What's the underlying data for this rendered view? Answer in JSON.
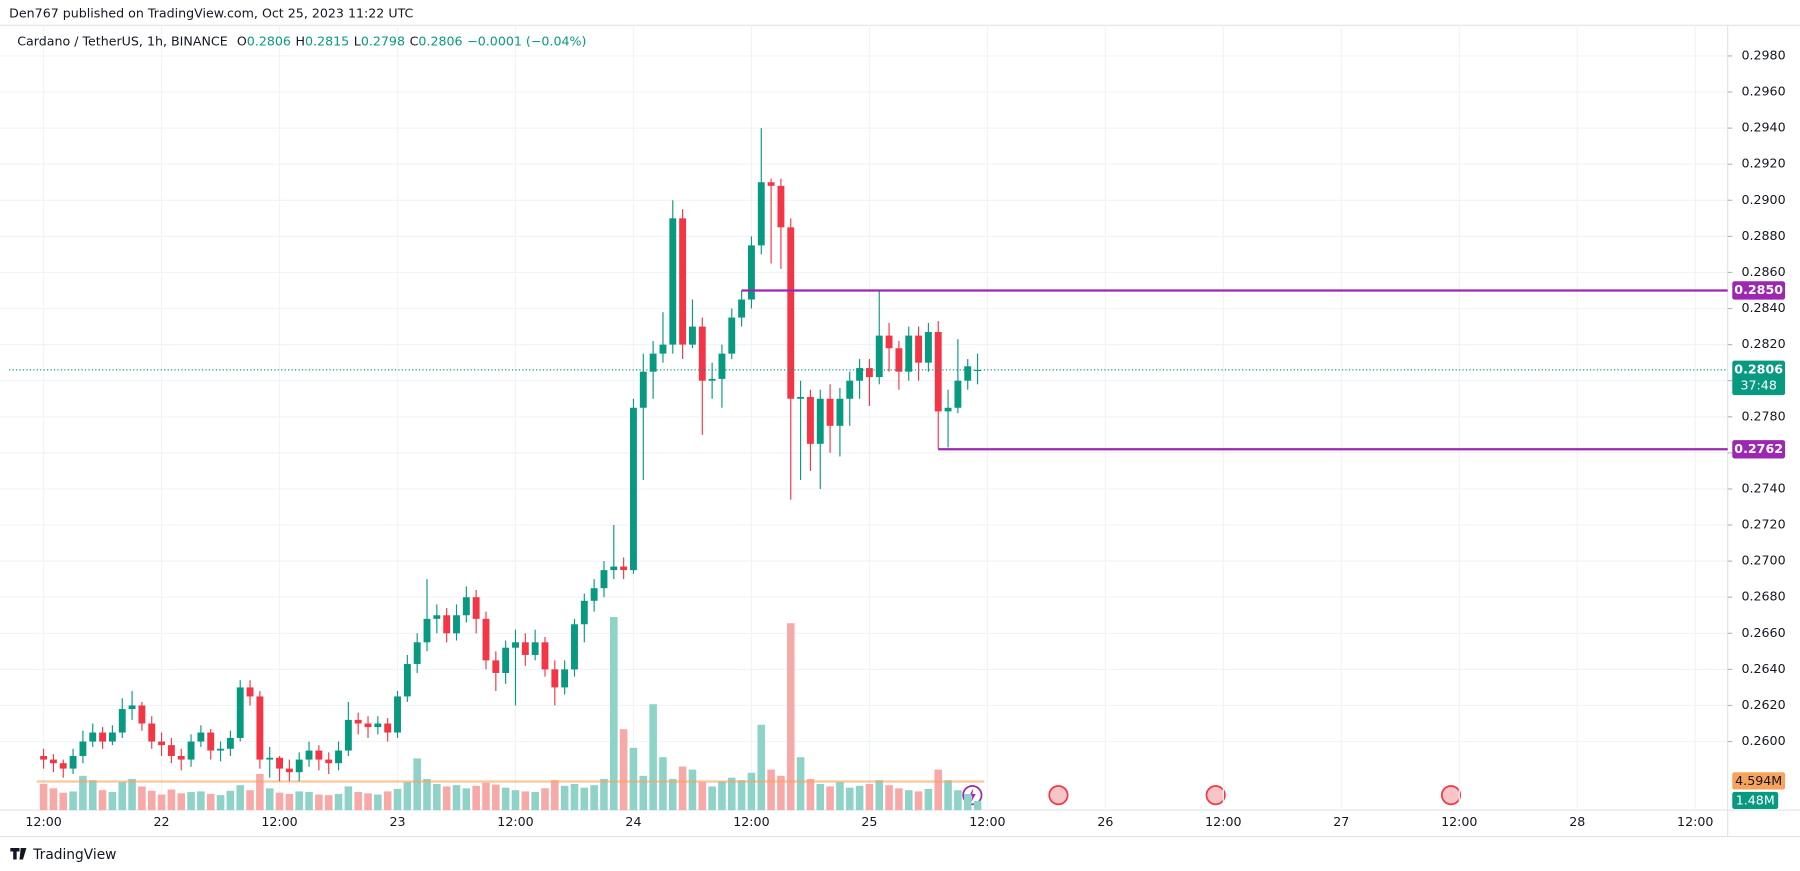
{
  "header": {
    "publisher": "Den767 published on TradingView.com, Oct 25, 2023 11:22 UTC",
    "footer": "TradingView"
  },
  "chart_data": {
    "type": "candlestick",
    "title": "Cardano / TetherUS, 1h, BINANCE",
    "legend_ohlc": [
      {
        "key": "O",
        "value": "0.2806"
      },
      {
        "key": "H",
        "value": "0.2815"
      },
      {
        "key": "L",
        "value": "0.2798"
      },
      {
        "key": "C",
        "value": "0.2806"
      }
    ],
    "change": "−0.0001 (−0.04%)",
    "colors": {
      "up": "#089981",
      "down": "#f23645",
      "volume_up": "#8fd2c8",
      "volume_down": "#f7a9a7",
      "level": "#9c27b0",
      "volume_ma": "#f7a35c",
      "grid": "#f0f3fa"
    },
    "grid": true,
    "xlim": [
      8.5,
      183.3
    ],
    "xticks": [
      {
        "value": 12,
        "label": "12:00"
      },
      {
        "value": 24,
        "label": "22"
      },
      {
        "value": 36,
        "label": "12:00"
      },
      {
        "value": 48,
        "label": "23"
      },
      {
        "value": 60,
        "label": "12:00"
      },
      {
        "value": 72,
        "label": "24"
      },
      {
        "value": 84,
        "label": "12:00"
      },
      {
        "value": 96,
        "label": "25"
      },
      {
        "value": 108,
        "label": "12:00"
      },
      {
        "value": 120,
        "label": "26"
      },
      {
        "value": 132,
        "label": "12:00"
      },
      {
        "value": 144,
        "label": "27"
      },
      {
        "value": 156,
        "label": "12:00"
      },
      {
        "value": 168,
        "label": "28"
      },
      {
        "value": 180,
        "label": "12:00"
      }
    ],
    "ylim": [
      0.2562,
      0.2997
    ],
    "yticks": [
      {
        "value": 0.26,
        "label": "0.2600"
      },
      {
        "value": 0.262,
        "label": "0.2620"
      },
      {
        "value": 0.264,
        "label": "0.2640"
      },
      {
        "value": 0.266,
        "label": "0.2660"
      },
      {
        "value": 0.268,
        "label": "0.2680"
      },
      {
        "value": 0.27,
        "label": "0.2700"
      },
      {
        "value": 0.272,
        "label": "0.2720"
      },
      {
        "value": 0.274,
        "label": "0.2740"
      },
      {
        "value": 0.276,
        "label": "0.2760"
      },
      {
        "value": 0.278,
        "label": "0.2780"
      },
      {
        "value": 0.28,
        "label": "0.2800"
      },
      {
        "value": 0.282,
        "label": "0.2820"
      },
      {
        "value": 0.284,
        "label": "0.2840"
      },
      {
        "value": 0.286,
        "label": "0.2860"
      },
      {
        "value": 0.288,
        "label": "0.2880"
      },
      {
        "value": 0.29,
        "label": "0.2900"
      },
      {
        "value": 0.292,
        "label": "0.2920"
      },
      {
        "value": 0.294,
        "label": "0.2940"
      },
      {
        "value": 0.296,
        "label": "0.2960"
      },
      {
        "value": 0.298,
        "label": "0.2980"
      }
    ],
    "volume_lim": [
      0,
      126
    ],
    "x": [
      12,
      13,
      14,
      15,
      16,
      17,
      18,
      19,
      20,
      21,
      22,
      23,
      24,
      25,
      26,
      27,
      28,
      29,
      30,
      31,
      32,
      33,
      34,
      35,
      36,
      37,
      38,
      39,
      40,
      41,
      42,
      43,
      44,
      45,
      46,
      47,
      48,
      49,
      50,
      51,
      52,
      53,
      54,
      55,
      56,
      57,
      58,
      59,
      60,
      61,
      62,
      63,
      64,
      65,
      66,
      67,
      68,
      69,
      70,
      71,
      72,
      73,
      74,
      75,
      76,
      77,
      78,
      79,
      80,
      81,
      82,
      83,
      84,
      85,
      86,
      87,
      88,
      89,
      90,
      91,
      92,
      93,
      94,
      95,
      96,
      97,
      98,
      99,
      100,
      101,
      102,
      103,
      104,
      105,
      106,
      107
    ],
    "ohlc": [
      [
        0.2592,
        0.2596,
        0.2585,
        0.259
      ],
      [
        0.259,
        0.2593,
        0.2583,
        0.2588
      ],
      [
        0.2588,
        0.259,
        0.258,
        0.2585
      ],
      [
        0.2585,
        0.2596,
        0.2582,
        0.2592
      ],
      [
        0.2592,
        0.2606,
        0.2588,
        0.26
      ],
      [
        0.26,
        0.261,
        0.2597,
        0.2605
      ],
      [
        0.2605,
        0.2608,
        0.2596,
        0.26
      ],
      [
        0.26,
        0.2609,
        0.2598,
        0.2605
      ],
      [
        0.2605,
        0.2624,
        0.2602,
        0.2618
      ],
      [
        0.2618,
        0.2628,
        0.2612,
        0.262
      ],
      [
        0.262,
        0.2622,
        0.2606,
        0.261
      ],
      [
        0.261,
        0.2614,
        0.2596,
        0.26
      ],
      [
        0.26,
        0.2605,
        0.2592,
        0.2598
      ],
      [
        0.2598,
        0.2602,
        0.2588,
        0.2592
      ],
      [
        0.2592,
        0.2596,
        0.2584,
        0.259
      ],
      [
        0.259,
        0.2604,
        0.2586,
        0.26
      ],
      [
        0.26,
        0.2609,
        0.2597,
        0.2605
      ],
      [
        0.2605,
        0.2607,
        0.259,
        0.2595
      ],
      [
        0.2595,
        0.26,
        0.2589,
        0.2596
      ],
      [
        0.2596,
        0.2606,
        0.2592,
        0.2602
      ],
      [
        0.2602,
        0.2634,
        0.26,
        0.263
      ],
      [
        0.263,
        0.2634,
        0.262,
        0.2625
      ],
      [
        0.2625,
        0.2628,
        0.2585,
        0.259
      ],
      [
        0.259,
        0.2597,
        0.258,
        0.2591
      ],
      [
        0.2591,
        0.2592,
        0.2578,
        0.2585
      ],
      [
        0.2585,
        0.259,
        0.2578,
        0.2583
      ],
      [
        0.2583,
        0.2594,
        0.2578,
        0.259
      ],
      [
        0.259,
        0.26,
        0.2586,
        0.2595
      ],
      [
        0.2595,
        0.2598,
        0.2584,
        0.259
      ],
      [
        0.259,
        0.2594,
        0.2582,
        0.2588
      ],
      [
        0.2588,
        0.26,
        0.2584,
        0.2595
      ],
      [
        0.2595,
        0.2622,
        0.2592,
        0.2612
      ],
      [
        0.2612,
        0.2616,
        0.2604,
        0.261
      ],
      [
        0.261,
        0.2614,
        0.2602,
        0.2608
      ],
      [
        0.2608,
        0.2614,
        0.2604,
        0.261
      ],
      [
        0.261,
        0.2613,
        0.26,
        0.2605
      ],
      [
        0.2605,
        0.2628,
        0.2602,
        0.2625
      ],
      [
        0.2625,
        0.2648,
        0.2622,
        0.2643
      ],
      [
        0.2643,
        0.266,
        0.2638,
        0.2655
      ],
      [
        0.2655,
        0.269,
        0.265,
        0.2668
      ],
      [
        0.2668,
        0.2676,
        0.266,
        0.267
      ],
      [
        0.267,
        0.2674,
        0.2655,
        0.266
      ],
      [
        0.266,
        0.2676,
        0.2656,
        0.267
      ],
      [
        0.267,
        0.2686,
        0.2666,
        0.268
      ],
      [
        0.268,
        0.2684,
        0.266,
        0.2668
      ],
      [
        0.2668,
        0.2672,
        0.264,
        0.2645
      ],
      [
        0.2645,
        0.265,
        0.2628,
        0.2638
      ],
      [
        0.2638,
        0.2656,
        0.2632,
        0.2652
      ],
      [
        0.2652,
        0.2662,
        0.262,
        0.2655
      ],
      [
        0.2655,
        0.266,
        0.2642,
        0.2648
      ],
      [
        0.2648,
        0.2662,
        0.2645,
        0.2655
      ],
      [
        0.2655,
        0.2658,
        0.2636,
        0.264
      ],
      [
        0.264,
        0.2645,
        0.262,
        0.263
      ],
      [
        0.263,
        0.2645,
        0.2626,
        0.264
      ],
      [
        0.264,
        0.2668,
        0.2636,
        0.2665
      ],
      [
        0.2665,
        0.2682,
        0.2655,
        0.2678
      ],
      [
        0.2678,
        0.269,
        0.2672,
        0.2685
      ],
      [
        0.2685,
        0.27,
        0.268,
        0.2695
      ],
      [
        0.2695,
        0.272,
        0.269,
        0.2697
      ],
      [
        0.2697,
        0.2702,
        0.269,
        0.2695
      ],
      [
        0.2695,
        0.279,
        0.2693,
        0.2785
      ],
      [
        0.2785,
        0.2815,
        0.2745,
        0.2805
      ],
      [
        0.2805,
        0.2822,
        0.279,
        0.2815
      ],
      [
        0.2815,
        0.2838,
        0.281,
        0.282
      ],
      [
        0.282,
        0.29,
        0.2815,
        0.289
      ],
      [
        0.289,
        0.2895,
        0.2812,
        0.282
      ],
      [
        0.282,
        0.2845,
        0.2818,
        0.283
      ],
      [
        0.283,
        0.2835,
        0.277,
        0.28
      ],
      [
        0.28,
        0.281,
        0.279,
        0.2801
      ],
      [
        0.2801,
        0.282,
        0.2785,
        0.2815
      ],
      [
        0.2815,
        0.284,
        0.2812,
        0.2835
      ],
      [
        0.2835,
        0.285,
        0.283,
        0.2845
      ],
      [
        0.2845,
        0.288,
        0.284,
        0.2875
      ],
      [
        0.2875,
        0.294,
        0.287,
        0.291
      ],
      [
        0.291,
        0.2912,
        0.2865,
        0.2908
      ],
      [
        0.2908,
        0.2912,
        0.2862,
        0.2885
      ],
      [
        0.2885,
        0.289,
        0.2734,
        0.279
      ],
      [
        0.279,
        0.28,
        0.2745,
        0.2791
      ],
      [
        0.2791,
        0.2795,
        0.275,
        0.2765
      ],
      [
        0.2765,
        0.2795,
        0.274,
        0.279
      ],
      [
        0.279,
        0.2798,
        0.276,
        0.2775
      ],
      [
        0.2775,
        0.2796,
        0.2758,
        0.279
      ],
      [
        0.279,
        0.2805,
        0.2775,
        0.28
      ],
      [
        0.28,
        0.2812,
        0.279,
        0.2807
      ],
      [
        0.2807,
        0.2812,
        0.2786,
        0.2802
      ],
      [
        0.2802,
        0.285,
        0.2798,
        0.2825
      ],
      [
        0.2825,
        0.2832,
        0.2805,
        0.2818
      ],
      [
        0.2818,
        0.2822,
        0.2795,
        0.2805
      ],
      [
        0.2805,
        0.283,
        0.28,
        0.2825
      ],
      [
        0.2825,
        0.283,
        0.28,
        0.281
      ],
      [
        0.281,
        0.2832,
        0.2805,
        0.2827
      ],
      [
        0.2827,
        0.2833,
        0.2762,
        0.2783
      ],
      [
        0.2783,
        0.2795,
        0.2763,
        0.2785
      ],
      [
        0.2785,
        0.2823,
        0.2782,
        0.28
      ],
      [
        0.28,
        0.2812,
        0.2795,
        0.2808
      ],
      [
        0.2806,
        0.2815,
        0.2798,
        0.2806
      ]
    ],
    "volume": [
      4.2,
      3.5,
      2.8,
      3.0,
      5.5,
      4.8,
      3.2,
      2.9,
      4.5,
      5.0,
      3.8,
      3.1,
      2.5,
      3.3,
      2.7,
      2.9,
      3.0,
      2.6,
      2.4,
      3.1,
      4.0,
      3.2,
      5.8,
      3.5,
      2.8,
      2.6,
      3.0,
      2.9,
      2.5,
      2.4,
      2.6,
      3.8,
      2.9,
      2.7,
      2.5,
      3.0,
      3.4,
      4.5,
      8.3,
      5.0,
      4.2,
      3.8,
      4.0,
      3.5,
      3.9,
      4.4,
      4.1,
      3.6,
      3.2,
      3.0,
      2.9,
      3.5,
      4.8,
      3.9,
      4.2,
      3.6,
      4.0,
      5.0,
      31.0,
      13.0,
      10.0,
      5.5,
      17.0,
      8.5,
      5.0,
      7.0,
      6.5,
      4.5,
      3.8,
      4.6,
      5.2,
      4.8,
      6.0,
      13.7,
      6.5,
      5.5,
      30.0,
      8.5,
      5.0,
      4.2,
      3.8,
      4.5,
      3.6,
      3.9,
      4.2,
      4.8,
      4.0,
      3.5,
      3.2,
      3.0,
      3.4,
      6.5,
      4.8,
      3.2,
      2.6,
      1.48
    ],
    "volume_value_labels": {
      "95": "1.48M"
    },
    "volume_ma": {
      "value": 4.594,
      "label": "4.594M"
    },
    "levels": [
      {
        "value": 0.285,
        "label": "0.2850"
      },
      {
        "value": 0.2762,
        "label": "0.2762"
      }
    ],
    "last_price": {
      "value": 0.2806,
      "label": "0.2806",
      "countdown": "37:48"
    }
  }
}
